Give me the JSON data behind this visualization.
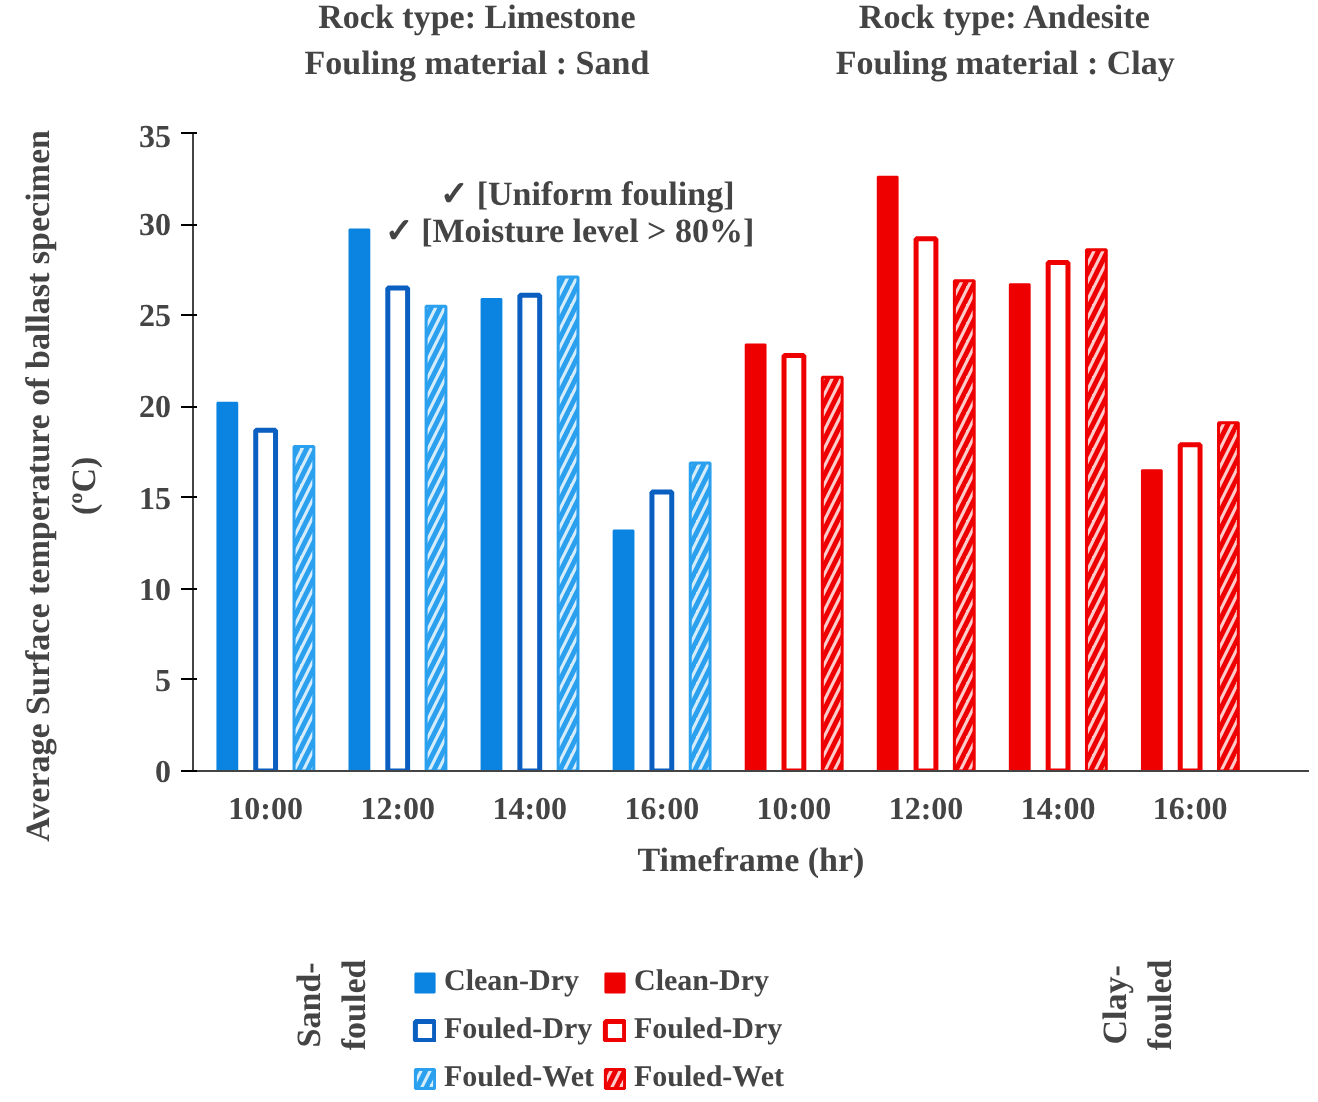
{
  "chart_data": {
    "type": "bar",
    "ylabel": "Average Surface temperature of ballast specimen\n(ºC)",
    "xlabel": "Timeframe (hr)",
    "categories": [
      "10:00",
      "12:00",
      "14:00",
      "16:00",
      "10:00",
      "12:00",
      "14:00",
      "16:00"
    ],
    "series": [
      {
        "name": "Clean-Dry",
        "color": "#0a84e0",
        "values": [
          20.2,
          29.7,
          25.9,
          13.2,
          null,
          null,
          null,
          null
        ]
      },
      {
        "name": "Fouled-Dry",
        "color": "#0a5fc0",
        "values": [
          18.7,
          26.5,
          26.1,
          15.3,
          null,
          null,
          null,
          null
        ]
      },
      {
        "name": "Fouled-Wet",
        "color": "#2aa0ee",
        "values": [
          17.8,
          25.5,
          27.1,
          16.9,
          null,
          null,
          null,
          null
        ]
      },
      {
        "name": "Clean-Dry",
        "color": "#ee0000",
        "values": [
          null,
          null,
          null,
          null,
          23.4,
          32.6,
          26.7,
          16.5
        ]
      },
      {
        "name": "Fouled-Dry",
        "color": "#ee0000",
        "values": [
          null,
          null,
          null,
          null,
          22.8,
          29.2,
          27.9,
          17.9
        ]
      },
      {
        "name": "Fouled-Wet",
        "color": "#ee0000",
        "values": [
          null,
          null,
          null,
          null,
          21.6,
          26.9,
          28.6,
          19.1
        ]
      }
    ],
    "ylim": [
      0,
      35
    ],
    "yticks": [
      0,
      5,
      10,
      15,
      20,
      25,
      30,
      35
    ],
    "grid": false,
    "legend": "bottom",
    "annotations": [
      "Rock type: Limestone\nFouling material : Sand",
      "Rock type: Andesite\nFouling material : Clay",
      "✓ [Uniform fouling]",
      "✓ [Moisture level > 80%]",
      "Sand-\nfouled",
      "Clay-\nfouled"
    ]
  }
}
